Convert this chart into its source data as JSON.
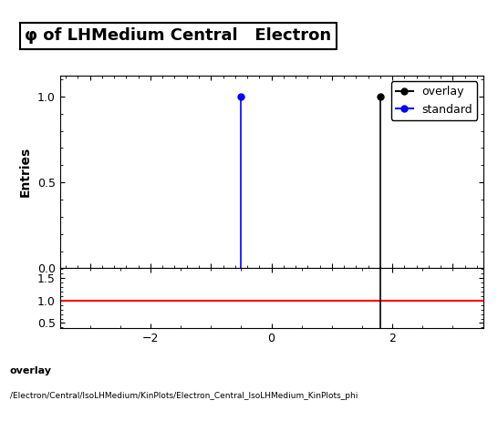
{
  "title": "φ of LHMedium Central   Electron",
  "ylabel_main": "Entries",
  "xlim": [
    -3.5,
    3.5
  ],
  "ylim_main": [
    0,
    1.12
  ],
  "ylim_ratio": [
    0.38,
    1.72
  ],
  "yticks_main": [
    0,
    0.5,
    1
  ],
  "yticks_ratio": [
    0.5,
    1,
    1.5
  ],
  "xticks": [
    -2,
    0,
    2
  ],
  "blue_x": -0.5,
  "black_x": 1.8,
  "overlay_color": "#000000",
  "standard_color": "#0000ff",
  "ratio_line_color": "#ff0000",
  "background_color": "#ffffff",
  "legend_overlay": "overlay",
  "legend_standard": "standard",
  "bottom_text1": "overlay",
  "bottom_text2": "/Electron/Central/IsoLHMedium/KinPlots/Electron_Central_IsoLHMedium_KinPlots_phi",
  "title_fontsize": 13,
  "label_fontsize": 10,
  "tick_fontsize": 9,
  "legend_fontsize": 9
}
